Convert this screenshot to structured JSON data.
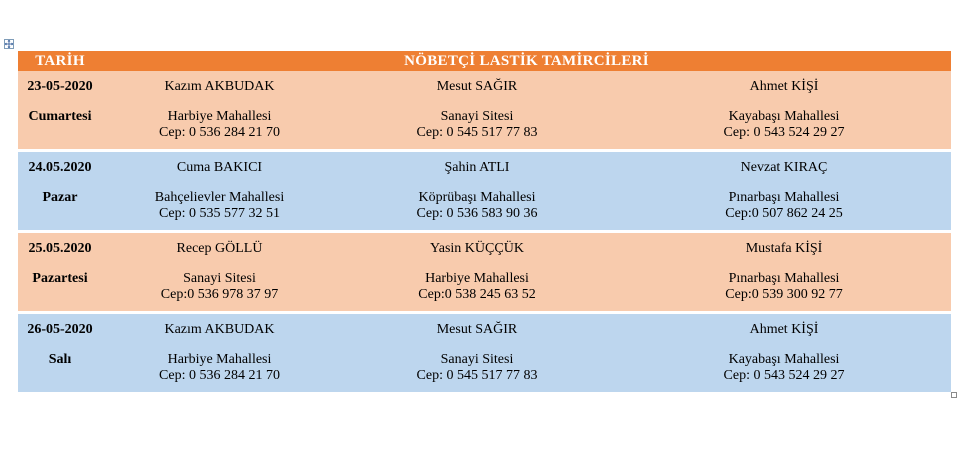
{
  "header": {
    "col_date": "TARİH",
    "col_title": "NÖBETÇİ LASTİK TAMİRCİLERİ"
  },
  "colors": {
    "header_bg": "#ee7f33",
    "row_orange": "#f8cbad",
    "row_blue": "#bdd6ee"
  },
  "rows": [
    {
      "date": "23-05-2020",
      "day": "Cumartesi",
      "color": "orange",
      "shops": [
        {
          "name": "Kazım AKBUDAK",
          "address": "Harbiye Mahallesi",
          "phone": "Cep: 0 536 284 21 70"
        },
        {
          "name": "Mesut SAĞIR",
          "address": "Sanayi Sitesi",
          "phone": "Cep: 0 545 517 77 83"
        },
        {
          "name": "Ahmet KİŞİ",
          "address": "Kayabaşı Mahallesi",
          "phone": "Cep: 0 543 524 29 27"
        }
      ]
    },
    {
      "date": "24.05.2020",
      "day": "Pazar",
      "color": "blue",
      "shops": [
        {
          "name": "Cuma BAKICI",
          "address": "Bahçelievler Mahallesi",
          "phone": "Cep: 0 535 577 32 51"
        },
        {
          "name": "Şahin ATLI",
          "address": "Köprübaşı Mahallesi",
          "phone": "Cep: 0 536 583 90 36"
        },
        {
          "name": "Nevzat KIRAÇ",
          "address": "Pınarbaşı Mahallesi",
          "phone": "Cep:0 507 862 24 25"
        }
      ]
    },
    {
      "date": "25.05.2020",
      "day": "Pazartesi",
      "color": "orange",
      "shops": [
        {
          "name": "Recep GÖLLÜ",
          "address": "Sanayi Sitesi",
          "phone": "Cep:0 536 978 37 97"
        },
        {
          "name": "Yasin KÜÇÇÜK",
          "address": "Harbiye Mahallesi",
          "phone": "Cep:0 538 245 63 52"
        },
        {
          "name": "Mustafa KİŞİ",
          "address": "Pınarbaşı Mahallesi",
          "phone": "Cep:0 539 300 92 77"
        }
      ]
    },
    {
      "date": "26-05-2020",
      "day": "Salı",
      "color": "blue",
      "shops": [
        {
          "name": "Kazım AKBUDAK",
          "address": "Harbiye Mahallesi",
          "phone": "Cep: 0 536 284 21 70"
        },
        {
          "name": "Mesut SAĞIR",
          "address": "Sanayi Sitesi",
          "phone": "Cep: 0 545 517 77 83"
        },
        {
          "name": "Ahmet KİŞİ",
          "address": "Kayabaşı Mahallesi",
          "phone": "Cep: 0 543 524 29 27"
        }
      ]
    }
  ]
}
